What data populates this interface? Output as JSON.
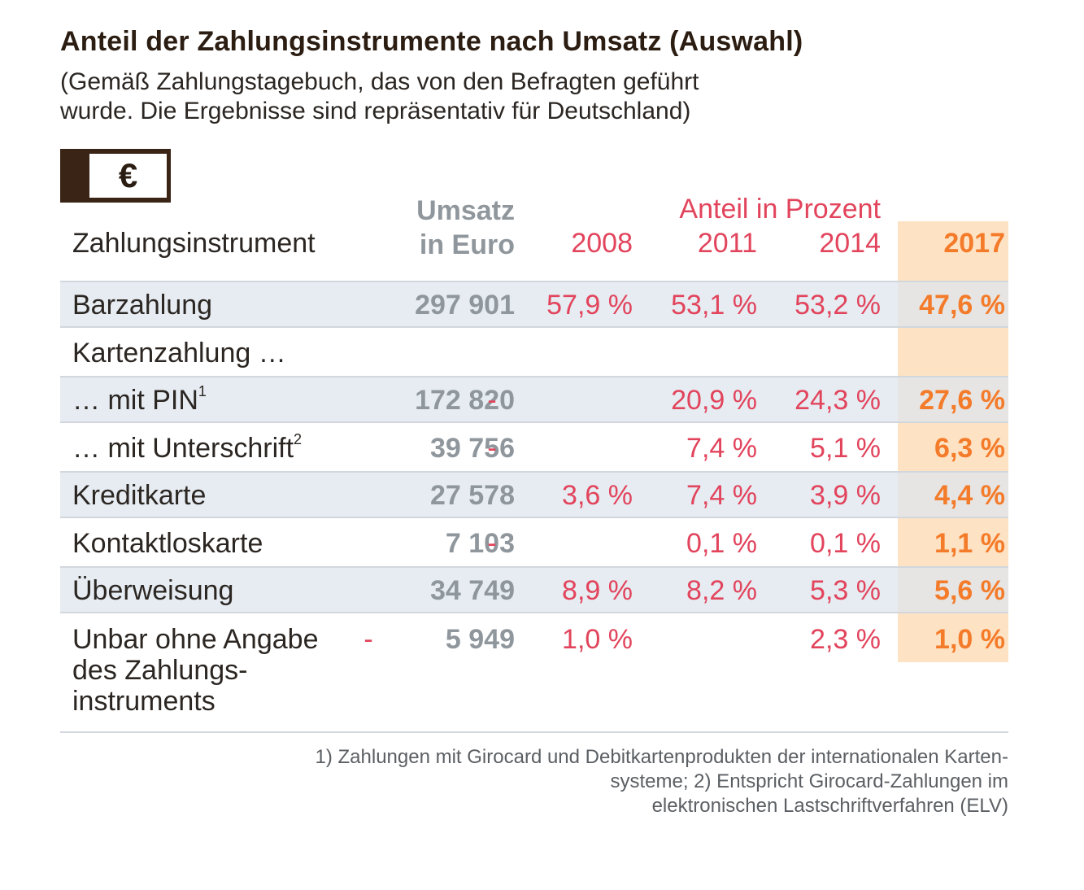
{
  "title": "Anteil der Zahlungsinstrumente nach Umsatz (Auswahl)",
  "subtitle_line1": "(Gemäß Zahlungstagebuch, das von den Befragten geführt",
  "subtitle_line2": "wurde. Die Ergebnisse sind repräsentativ für Deutschland)",
  "icon": {
    "name": "euro-banknote-icon",
    "glyph": "€"
  },
  "colors": {
    "umsatz": "#8f979d",
    "share": "#e2445c",
    "highlight": "#f47b2a",
    "highlight_bg": "#fde3c4",
    "row_shade": "#dee6ee"
  },
  "chart_data": {
    "type": "table",
    "columns": {
      "instrument": "Zahlungsinstrument",
      "umsatz_line1": "Umsatz",
      "umsatz_line2": "in Euro",
      "share_group": "Anteil in Prozent",
      "y2008": "2008",
      "y2011": "2011",
      "y2014": "2014",
      "y2017": "2017"
    },
    "rows": [
      {
        "label": "Barzahlung",
        "sup": "",
        "umsatz": "297 901",
        "v2008": "57,9 %",
        "v2011": "53,1 %",
        "v2014": "53,2 %",
        "v2017": "47,6 %"
      },
      {
        "label": "Kartenzahlung …",
        "sup": "",
        "umsatz": "",
        "v2008": "",
        "v2011": "",
        "v2014": "",
        "v2017": ""
      },
      {
        "label": "… mit PIN",
        "sup": "1",
        "umsatz": "172 820",
        "v2008": "-",
        "v2011": "20,9 %",
        "v2014": "24,3 %",
        "v2017": "27,6 %"
      },
      {
        "label": "… mit Unterschrift",
        "sup": "2",
        "umsatz": "39 756",
        "v2008": "-",
        "v2011": "7,4 %",
        "v2014": "5,1 %",
        "v2017": "6,3 %"
      },
      {
        "label": "Kreditkarte",
        "sup": "",
        "umsatz": "27 578",
        "v2008": "3,6 %",
        "v2011": "7,4 %",
        "v2014": "3,9 %",
        "v2017": "4,4 %"
      },
      {
        "label": "Kontaktloskarte",
        "sup": "",
        "umsatz": "7 103",
        "v2008": "-",
        "v2011": "0,1 %",
        "v2014": "0,1 %",
        "v2017": "1,1 %"
      },
      {
        "label": "Überweisung",
        "sup": "",
        "umsatz": "34 749",
        "v2008": "8,9 %",
        "v2011": "8,2 %",
        "v2014": "5,3 %",
        "v2017": "5,6 %"
      },
      {
        "label_lines": [
          "Unbar ohne Angabe",
          "des Zahlungs-",
          "instruments"
        ],
        "sup": "",
        "umsatz": "5 949",
        "v2008": "1,0 %",
        "v2011": "-",
        "v2014": "2,3 %",
        "v2017": "1,0 %"
      }
    ]
  },
  "footnote_line1": "1) Zahlungen mit Girocard und Debitkartenprodukten der internationalen Karten-",
  "footnote_line2": "systeme; 2) Entspricht Girocard-Zahlungen im",
  "footnote_line3": "elektronischen Lastschriftverfahren (ELV)"
}
